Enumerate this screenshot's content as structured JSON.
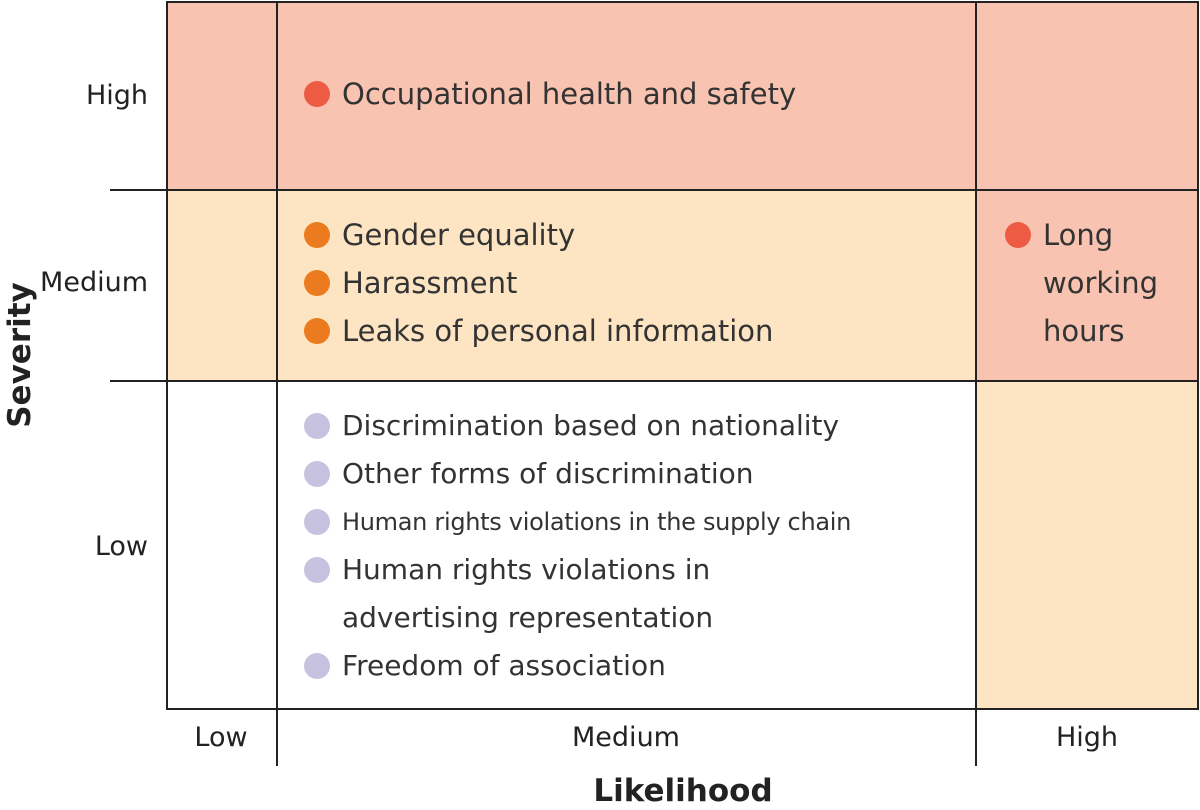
{
  "axes": {
    "y_title": "Severity",
    "x_title": "Likelihood",
    "y_levels": [
      "High",
      "Medium",
      "Low"
    ],
    "x_levels": [
      "Low",
      "Medium",
      "High"
    ]
  },
  "colors": {
    "high_risk_fill": "#f8c3b0",
    "medium_risk_fill": "#fde5c4",
    "low_risk_fill": "#ffffff",
    "high_dot": "#ee5b45",
    "medium_dot": "#ec7a1f",
    "low_dot": "#c7c2df"
  },
  "cells": {
    "high_medium": [
      {
        "label": "Occupational health and safety"
      }
    ],
    "medium_medium": [
      {
        "label": "Gender equality"
      },
      {
        "label": "Harassment"
      },
      {
        "label": "Leaks of personal information"
      }
    ],
    "medium_high": [
      {
        "label": "Long working hours"
      }
    ],
    "low_medium": [
      {
        "label": "Discrimination based on nationality"
      },
      {
        "label": "Other forms of discrimination"
      },
      {
        "label": "Human rights violations in the supply chain"
      },
      {
        "label": "Human rights violations in advertising representation"
      },
      {
        "label": "Freedom of association"
      }
    ]
  }
}
